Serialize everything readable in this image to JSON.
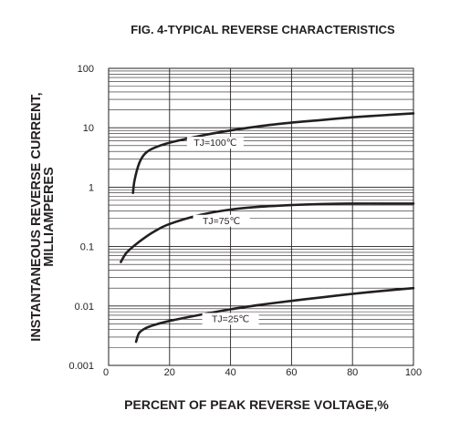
{
  "chart_data": {
    "type": "line",
    "title": "FIG. 4-TYPICAL REVERSE CHARACTERISTICS",
    "xlabel": "PERCENT OF PEAK REVERSE VOLTAGE,%",
    "ylabel_lines": [
      "INSTANTANEOUS REVERSE CURRENT,",
      "MILLIAMPERES"
    ],
    "xlim": [
      0,
      100
    ],
    "ylim": [
      0.001,
      100
    ],
    "yscale": "log",
    "x_ticks": [
      "0",
      "20",
      "40",
      "60",
      "80",
      "100"
    ],
    "y_ticks": [
      "0.001",
      "0.01",
      "0.1",
      "1",
      "10",
      "100"
    ],
    "grid": true,
    "series": [
      {
        "name": "TJ=100℃",
        "x": [
          8,
          8.5,
          10,
          12,
          15,
          20,
          30,
          40,
          50,
          60,
          70,
          80,
          90,
          100
        ],
        "y": [
          0.8,
          1.3,
          2.5,
          3.7,
          4.6,
          5.6,
          7.3,
          9.0,
          10.7,
          12.2,
          13.5,
          15.0,
          16.2,
          17.5
        ],
        "label_x": 35
      },
      {
        "name": "TJ=75℃",
        "x": [
          4,
          6,
          10,
          15,
          20,
          30,
          40,
          50,
          60,
          70,
          80,
          90,
          100
        ],
        "y": [
          0.055,
          0.08,
          0.12,
          0.18,
          0.24,
          0.34,
          0.42,
          0.47,
          0.5,
          0.52,
          0.53,
          0.53,
          0.53
        ],
        "label_x": 37
      },
      {
        "name": "TJ=25℃",
        "x": [
          9,
          10,
          12,
          15,
          20,
          30,
          40,
          50,
          60,
          70,
          80,
          90,
          100
        ],
        "y": [
          0.0025,
          0.0035,
          0.0042,
          0.0048,
          0.0056,
          0.0071,
          0.0088,
          0.0105,
          0.0122,
          0.014,
          0.016,
          0.018,
          0.02
        ],
        "label_x": 40
      }
    ]
  }
}
